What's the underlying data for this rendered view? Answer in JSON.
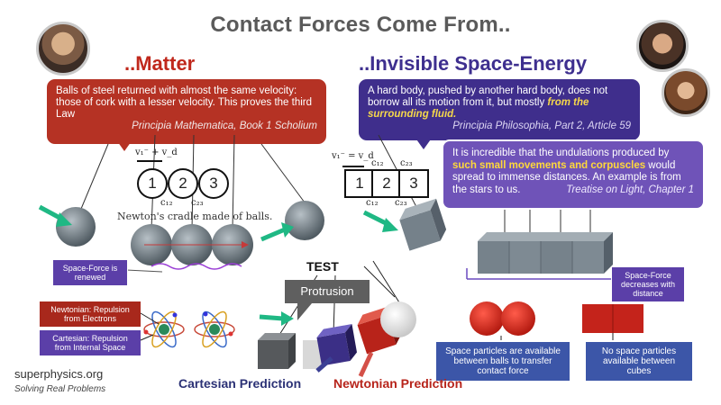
{
  "title": "Contact Forces Come From..",
  "matter": {
    "heading": "..Matter",
    "quote": "Balls of steel returned with almost the same velocity: those of cork with a lesser velocity. This proves the third Law",
    "source": "Principia Mathematica, Book 1 Scholium"
  },
  "space_energy": {
    "heading": "..Invisible Space-Energy",
    "quote_pre": "A hard body, pushed by another hard body, does not borrow all its motion from it, but mostly ",
    "quote_hl": "from the surrounding fluid.",
    "source": "Principia Philosophia, Part 2, Article 59"
  },
  "light": {
    "pre": "It is incredible that the undulations produced by ",
    "hl": "such small movements and corpuscles",
    "post": " would spread to immense distances. An example is from the stars to us.",
    "source": "Treatise on Light, Chapter 1"
  },
  "cradle": {
    "formula": "v₁⁻ + v_d",
    "c12": "c₁₂",
    "c23": "c₂₃",
    "b1": "1",
    "b2": "2",
    "b3": "3",
    "caption": "Newton's cradle made of balls."
  },
  "blocks": {
    "formula": "v₁⁻ = v_d",
    "c12a": "c₁₂",
    "c23a": "c₂₃",
    "c12b": "c₁₂",
    "c23b": "c₂₃",
    "b1": "1",
    "b2": "2",
    "b3": "3"
  },
  "labels": {
    "space_force_renewed": "Space-Force is renewed",
    "space_force_decreases": "Space-Force decreases with distance",
    "newtonian": "Newtonian: Repulsion from Electrons",
    "cartesian": "Cartesian: Repulsion from Internal Space",
    "test": "TEST",
    "protrusion": "Protrusion",
    "space_particles_balls": "Space particles are available between balls to transfer contact force",
    "no_space_particles": "No space particles available between cubes",
    "cartesian_prediction": "Cartesian Prediction",
    "newtonian_prediction": "Newtonian Prediction"
  },
  "brand": {
    "site": "superphysics.org",
    "tagline": "Solving Real Problems"
  },
  "colors": {
    "red": "#b53224",
    "purple": "#3f2e8c",
    "lavender": "#6f53b8",
    "teal_arrow": "#1fb884",
    "blue_label": "#3c56a8"
  }
}
